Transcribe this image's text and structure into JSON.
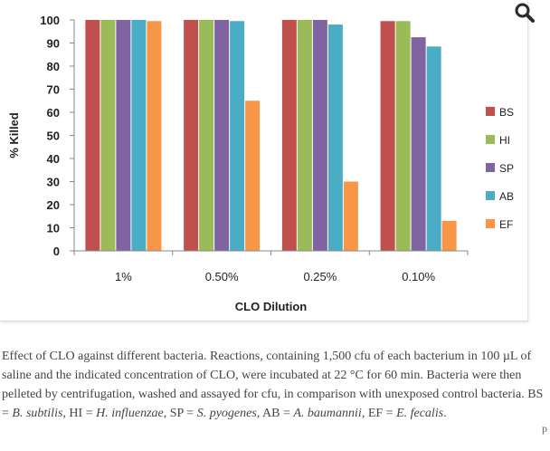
{
  "chart_data": {
    "type": "bar",
    "xlabel": "CLO Dilution",
    "ylabel": "% Killed",
    "ylim": [
      0,
      100
    ],
    "yticks": [
      0,
      10,
      20,
      30,
      40,
      50,
      60,
      70,
      80,
      90,
      100
    ],
    "categories": [
      "1%",
      "0.50%",
      "0.25%",
      "0.10%"
    ],
    "series": [
      {
        "name": "BS",
        "color": "#c0504d",
        "values": [
          100,
          100,
          100,
          99.5
        ]
      },
      {
        "name": "HI",
        "color": "#9bbb59",
        "values": [
          100,
          100,
          100,
          99.5
        ]
      },
      {
        "name": "SP",
        "color": "#8064a2",
        "values": [
          100,
          100,
          100,
          92.5
        ]
      },
      {
        "name": "AB",
        "color": "#4bacc6",
        "values": [
          100,
          99.5,
          98,
          88.5
        ]
      },
      {
        "name": "EF",
        "color": "#f79646",
        "values": [
          99.5,
          65,
          30,
          13
        ]
      }
    ],
    "grid": false,
    "legend": "right"
  },
  "icons": {
    "zoom": "magnifier-icon"
  },
  "caption": {
    "p1": "Effect of CLO against different bacteria. Reactions, containing 1,500 cfu of each bacterium in 100 µL of saline and the indicated concentration of CLO, were incubated at 22 °C for 60 min. Bacteria were then pelleted by centrifugation, washed and assayed for cfu, in comparison with unexposed control bacteria. BS = ",
    "bs": "B. subtilis",
    "p2": ", HI = ",
    "hi": "H. influenzae",
    "p3": ", SP = ",
    "sp": "S. pyogenes",
    "p4": ", AB = ",
    "ab": "A. baumannii",
    "p5": ", EF = ",
    "ef": "E. fecalis",
    "p6": "."
  },
  "side_mark": "p"
}
